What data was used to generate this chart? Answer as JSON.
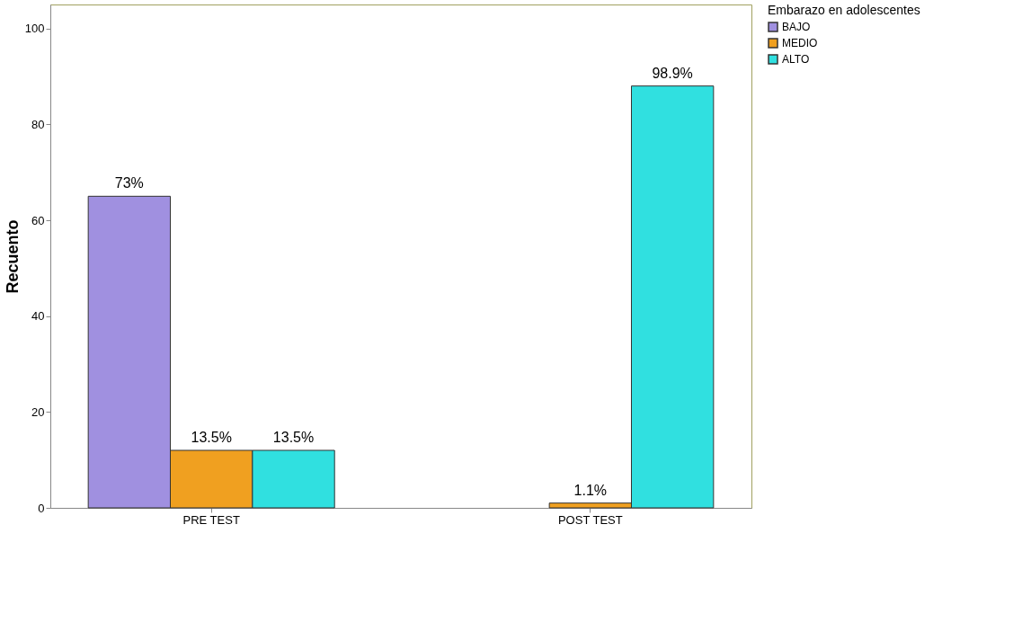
{
  "chart_data": {
    "type": "bar",
    "ylabel": "Recuento",
    "legend_title": "Embarazo en adolescentes",
    "legend": "right",
    "grid": false,
    "categories": [
      "PRE TEST",
      "POST TEST"
    ],
    "ylim": [
      0,
      105
    ],
    "yticks": [
      0,
      20,
      40,
      60,
      80,
      100
    ],
    "series": [
      {
        "name": "BAJO",
        "color": "#a090e0",
        "values": [
          65,
          null
        ]
      },
      {
        "name": "MEDIO",
        "color": "#f0a020",
        "values": [
          12,
          1
        ]
      },
      {
        "name": "ALTO",
        "color": "#30e0e0",
        "values": [
          12,
          88
        ]
      }
    ],
    "annotations": [
      "73%",
      "13.5%",
      "13.5%",
      "1.1%",
      "98.9%"
    ]
  }
}
